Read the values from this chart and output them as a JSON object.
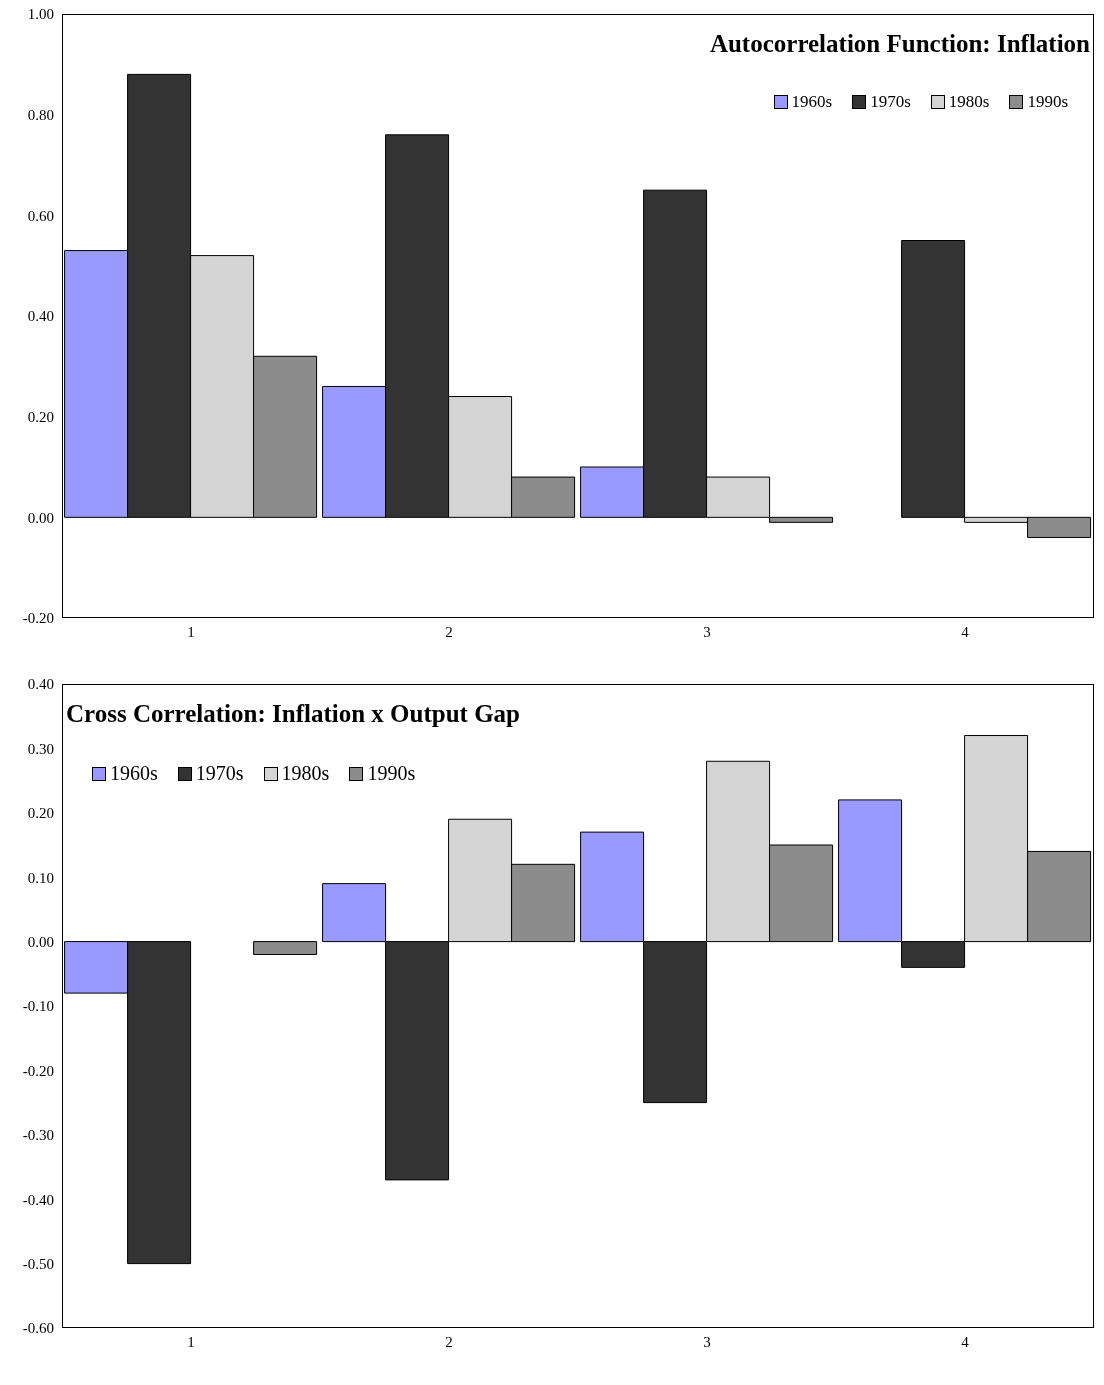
{
  "chart_data": [
    {
      "type": "bar",
      "title": "Autocorrelation Function: Inflation",
      "categories": [
        "1",
        "2",
        "3",
        "4"
      ],
      "series": [
        {
          "name": "1960s",
          "color": "#9999ff",
          "values": [
            0.53,
            0.26,
            0.1,
            0.0
          ]
        },
        {
          "name": "1970s",
          "color": "#333333",
          "values": [
            0.88,
            0.76,
            0.65,
            0.55
          ]
        },
        {
          "name": "1980s",
          "color": "#d4d4d4",
          "values": [
            0.52,
            0.24,
            0.08,
            -0.01
          ]
        },
        {
          "name": "1990s",
          "color": "#8c8c8c",
          "values": [
            0.32,
            0.08,
            -0.01,
            -0.04
          ]
        }
      ],
      "ylim": [
        -0.2,
        1.0
      ],
      "yticks": [
        {
          "value": -0.2,
          "label": "-0.20"
        },
        {
          "value": 0,
          "label": "0.00"
        },
        {
          "value": 0.2,
          "label": "0.20"
        },
        {
          "value": 0.4,
          "label": "0.40"
        },
        {
          "value": 0.6,
          "label": "0.60"
        },
        {
          "value": 0.8,
          "label": "0.80"
        },
        {
          "value": 1.0,
          "label": "1.00"
        }
      ],
      "grid": false,
      "legend": "top right"
    },
    {
      "type": "bar",
      "title": "Cross Correlation: Inflation x Output Gap",
      "categories": [
        "1",
        "2",
        "3",
        "4"
      ],
      "series": [
        {
          "name": "1960s",
          "color": "#9999ff",
          "values": [
            -0.08,
            0.09,
            0.17,
            0.22
          ]
        },
        {
          "name": "1970s",
          "color": "#333333",
          "values": [
            -0.5,
            -0.37,
            -0.25,
            -0.04
          ]
        },
        {
          "name": "1980s",
          "color": "#d4d4d4",
          "values": [
            null,
            0.19,
            0.28,
            0.32
          ]
        },
        {
          "name": "1990s",
          "color": "#8c8c8c",
          "values": [
            -0.02,
            0.12,
            0.15,
            0.14
          ]
        }
      ],
      "ylim": [
        -0.6,
        0.4
      ],
      "yticks": [
        {
          "value": -0.6,
          "label": "-0.60"
        },
        {
          "value": -0.5,
          "label": "-0.50"
        },
        {
          "value": -0.4,
          "label": "-0.40"
        },
        {
          "value": -0.3,
          "label": "-0.30"
        },
        {
          "value": -0.2,
          "label": "-0.20"
        },
        {
          "value": -0.1,
          "label": "-0.10"
        },
        {
          "value": 0,
          "label": "0.00"
        },
        {
          "value": 0.1,
          "label": "0.10"
        },
        {
          "value": 0.2,
          "label": "0.20"
        },
        {
          "value": 0.3,
          "label": "0.30"
        },
        {
          "value": 0.4,
          "label": "0.40"
        }
      ],
      "grid": false,
      "legend": "top left"
    }
  ]
}
